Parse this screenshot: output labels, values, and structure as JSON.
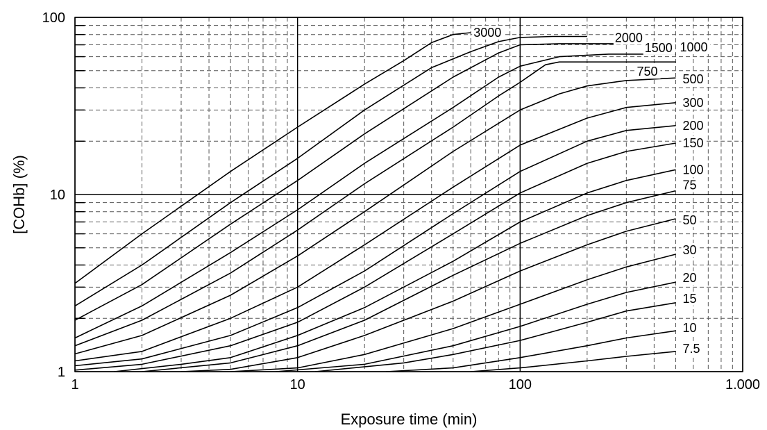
{
  "chart_data": {
    "type": "line",
    "title": "",
    "xlabel": "Exposure time (min)",
    "ylabel": "[COHb] (%)",
    "x_scale": "log",
    "y_scale": "log",
    "xlim": [
      1,
      1000
    ],
    "ylim": [
      1,
      100
    ],
    "grid": true,
    "grid_minor_style": "dashed",
    "legend": "inline labels at curve ends",
    "line_color": "#000000",
    "x_ticks": [
      {
        "value": 1,
        "label": "1"
      },
      {
        "value": 10,
        "label": "10"
      },
      {
        "value": 100,
        "label": "100"
      },
      {
        "value": 1000,
        "label": "1.000"
      }
    ],
    "y_ticks": [
      {
        "value": 1,
        "label": "1"
      },
      {
        "value": 10,
        "label": "10"
      },
      {
        "value": 100,
        "label": "100"
      }
    ],
    "series": [
      {
        "name": "3000",
        "points": [
          [
            1,
            3.15
          ],
          [
            2,
            6.0
          ],
          [
            5,
            13.5
          ],
          [
            10,
            24
          ],
          [
            20,
            42
          ],
          [
            30,
            57
          ],
          [
            40,
            72
          ],
          [
            50,
            80
          ],
          [
            60,
            82
          ]
        ]
      },
      {
        "name": "2000",
        "points": [
          [
            1,
            2.35
          ],
          [
            2,
            4.0
          ],
          [
            5,
            9.0
          ],
          [
            10,
            16
          ],
          [
            20,
            30
          ],
          [
            40,
            52
          ],
          [
            60,
            64
          ],
          [
            80,
            73
          ],
          [
            100,
            77
          ],
          [
            140,
            78
          ],
          [
            200,
            78
          ]
        ]
      },
      {
        "name": "1500",
        "points": [
          [
            1,
            1.95
          ],
          [
            2,
            3.1
          ],
          [
            5,
            6.8
          ],
          [
            10,
            12
          ],
          [
            20,
            22
          ],
          [
            50,
            46
          ],
          [
            80,
            63
          ],
          [
            100,
            70
          ],
          [
            150,
            71
          ],
          [
            200,
            71
          ],
          [
            280,
            71
          ]
        ]
      },
      {
        "name": "1000",
        "points": [
          [
            1,
            1.55
          ],
          [
            2,
            2.35
          ],
          [
            5,
            4.7
          ],
          [
            10,
            8.2
          ],
          [
            20,
            15
          ],
          [
            50,
            31
          ],
          [
            80,
            46
          ],
          [
            100,
            53
          ],
          [
            150,
            60
          ],
          [
            250,
            62
          ],
          [
            500,
            62
          ]
        ]
      },
      {
        "name": "750",
        "points": [
          [
            1,
            1.4
          ],
          [
            2,
            1.95
          ],
          [
            5,
            3.6
          ],
          [
            10,
            6.3
          ],
          [
            20,
            11.5
          ],
          [
            50,
            24
          ],
          [
            80,
            36
          ],
          [
            100,
            43
          ],
          [
            130,
            54
          ],
          [
            150,
            56
          ],
          [
            200,
            56
          ],
          [
            500,
            56
          ]
        ]
      },
      {
        "name": "500",
        "points": [
          [
            1,
            1.26
          ],
          [
            2,
            1.6
          ],
          [
            5,
            2.7
          ],
          [
            10,
            4.5
          ],
          [
            20,
            8.0
          ],
          [
            50,
            17.5
          ],
          [
            100,
            30
          ],
          [
            150,
            37
          ],
          [
            200,
            41
          ],
          [
            300,
            44
          ],
          [
            500,
            45.5
          ]
        ]
      },
      {
        "name": "300",
        "points": [
          [
            1,
            1.15
          ],
          [
            2,
            1.3
          ],
          [
            5,
            2.0
          ],
          [
            10,
            3.0
          ],
          [
            20,
            5.2
          ],
          [
            50,
            11
          ],
          [
            100,
            19
          ],
          [
            200,
            27
          ],
          [
            300,
            31
          ],
          [
            500,
            33
          ]
        ]
      },
      {
        "name": "200",
        "points": [
          [
            1,
            1.08
          ],
          [
            2,
            1.18
          ],
          [
            5,
            1.6
          ],
          [
            10,
            2.3
          ],
          [
            20,
            3.7
          ],
          [
            50,
            7.8
          ],
          [
            100,
            13.5
          ],
          [
            200,
            20
          ],
          [
            300,
            23
          ],
          [
            500,
            24.5
          ]
        ]
      },
      {
        "name": "150",
        "points": [
          [
            1,
            1.02
          ],
          [
            2,
            1.1
          ],
          [
            5,
            1.4
          ],
          [
            10,
            1.9
          ],
          [
            20,
            3.0
          ],
          [
            50,
            6.0
          ],
          [
            100,
            10.2
          ],
          [
            200,
            15
          ],
          [
            300,
            17.5
          ],
          [
            500,
            19.5
          ]
        ]
      },
      {
        "name": "100",
        "points": [
          [
            1.5,
            1.0
          ],
          [
            3,
            1.1
          ],
          [
            5,
            1.2
          ],
          [
            10,
            1.6
          ],
          [
            20,
            2.3
          ],
          [
            50,
            4.2
          ],
          [
            100,
            7.0
          ],
          [
            200,
            10.2
          ],
          [
            300,
            12
          ],
          [
            500,
            13.8
          ]
        ]
      },
      {
        "name": "75",
        "points": [
          [
            2,
            1.0
          ],
          [
            5,
            1.12
          ],
          [
            10,
            1.4
          ],
          [
            20,
            1.95
          ],
          [
            50,
            3.5
          ],
          [
            100,
            5.3
          ],
          [
            200,
            7.6
          ],
          [
            300,
            9.0
          ],
          [
            500,
            10.5
          ]
        ]
      },
      {
        "name": "50",
        "points": [
          [
            3,
            1.0
          ],
          [
            5,
            1.03
          ],
          [
            10,
            1.2
          ],
          [
            20,
            1.6
          ],
          [
            50,
            2.5
          ],
          [
            100,
            3.7
          ],
          [
            200,
            5.2
          ],
          [
            300,
            6.2
          ],
          [
            500,
            7.3
          ]
        ]
      },
      {
        "name": "30",
        "points": [
          [
            5,
            1.0
          ],
          [
            10,
            1.05
          ],
          [
            20,
            1.25
          ],
          [
            50,
            1.75
          ],
          [
            100,
            2.4
          ],
          [
            200,
            3.3
          ],
          [
            300,
            3.9
          ],
          [
            500,
            4.6
          ]
        ]
      },
      {
        "name": "20",
        "points": [
          [
            8,
            1.0
          ],
          [
            20,
            1.1
          ],
          [
            50,
            1.4
          ],
          [
            100,
            1.8
          ],
          [
            200,
            2.4
          ],
          [
            300,
            2.8
          ],
          [
            500,
            3.2
          ]
        ]
      },
      {
        "name": "15",
        "points": [
          [
            12,
            1.0
          ],
          [
            30,
            1.12
          ],
          [
            50,
            1.25
          ],
          [
            100,
            1.5
          ],
          [
            200,
            1.9
          ],
          [
            300,
            2.2
          ],
          [
            500,
            2.45
          ]
        ]
      },
      {
        "name": "10",
        "points": [
          [
            25,
            1.0
          ],
          [
            50,
            1.05
          ],
          [
            100,
            1.2
          ],
          [
            200,
            1.4
          ],
          [
            300,
            1.55
          ],
          [
            500,
            1.7
          ]
        ]
      },
      {
        "name": "7.5",
        "points": [
          [
            60,
            1.0
          ],
          [
            100,
            1.05
          ],
          [
            200,
            1.15
          ],
          [
            300,
            1.22
          ],
          [
            500,
            1.3
          ]
        ]
      }
    ]
  }
}
